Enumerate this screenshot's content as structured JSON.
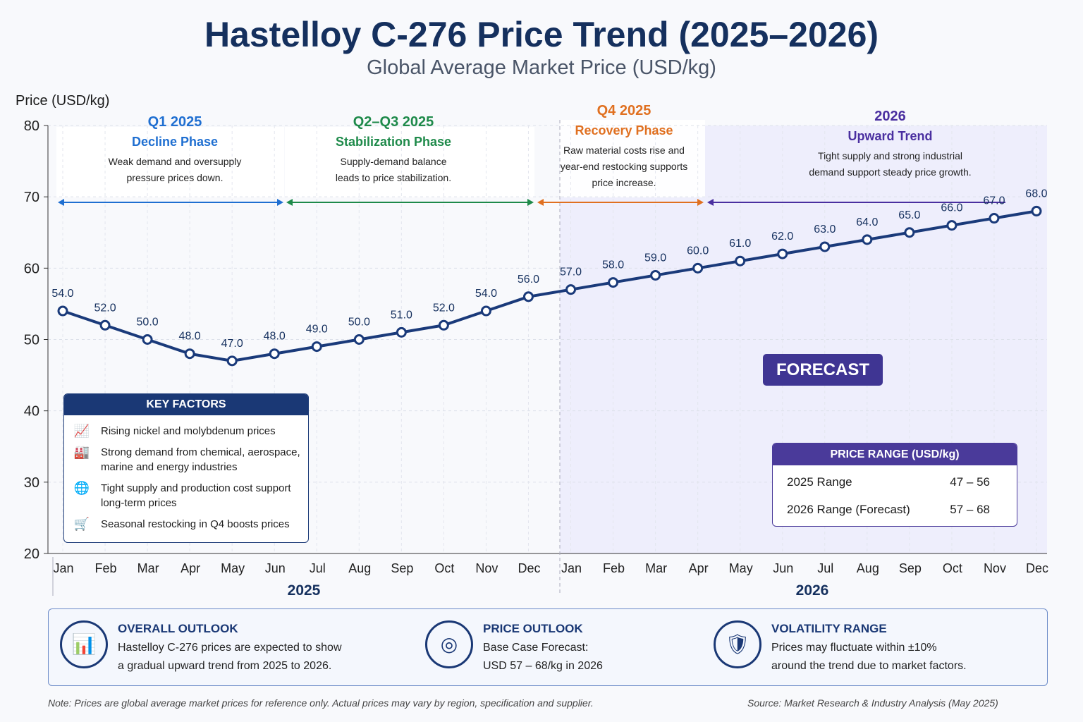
{
  "header": {
    "title": "Hastelloy C-276 Price Trend (2025–2026)",
    "subtitle": "Global Average Market Price (USD/kg)"
  },
  "chart_data": {
    "type": "line",
    "ylabel": "Price (USD/kg)",
    "ylim": [
      20,
      80
    ],
    "yticks": [
      20,
      30,
      40,
      50,
      60,
      70,
      80
    ],
    "grid": true,
    "x": [
      "Jan",
      "Feb",
      "Mar",
      "Apr",
      "May",
      "Jun",
      "Jul",
      "Aug",
      "Sep",
      "Oct",
      "Nov",
      "Dec",
      "Jan",
      "Feb",
      "Mar",
      "Apr",
      "May",
      "Jun",
      "Jul",
      "Aug",
      "Sep",
      "Oct",
      "Nov",
      "Dec"
    ],
    "year_labels": [
      "2025",
      "2026"
    ],
    "values": [
      54.0,
      52.0,
      50.0,
      48.0,
      47.0,
      48.0,
      49.0,
      50.0,
      51.0,
      52.0,
      54.0,
      56.0,
      57.0,
      58.0,
      59.0,
      60.0,
      61.0,
      62.0,
      63.0,
      64.0,
      65.0,
      66.0,
      67.0,
      68.0
    ],
    "forecast_label": "FORECAST",
    "forecast_start": "Jan 2026",
    "colors": {
      "line": "#1a3a7a",
      "forecast_bg": "#eeeefc"
    }
  },
  "phases": [
    {
      "period": "Q1 2025",
      "name": "Decline Phase",
      "desc": [
        "Weak demand and oversupply",
        "pressure prices down."
      ],
      "color": "#1f6fd1"
    },
    {
      "period": "Q2–Q3 2025",
      "name": "Stabilization Phase",
      "desc": [
        "Supply-demand balance",
        "leads to price stabilization."
      ],
      "color": "#1e8a4a"
    },
    {
      "period": "Q4 2025",
      "name": "Recovery Phase",
      "desc": [
        "Raw material costs rise and",
        "year-end restocking supports",
        "price increase."
      ],
      "color": "#e07020"
    },
    {
      "period": "2026",
      "name": "Upward Trend",
      "desc": [
        "Tight supply and strong industrial",
        "demand support steady price growth."
      ],
      "color": "#4a2fa0"
    }
  ],
  "key_factors": {
    "title": "KEY FACTORS",
    "items": [
      {
        "icon": "chart-up-icon",
        "text": "Rising nickel and molybdenum prices"
      },
      {
        "icon": "factory-icon",
        "text": "Strong demand from chemical, aerospace, marine and energy industries"
      },
      {
        "icon": "globe-icon",
        "text": "Tight supply and production cost support long-term prices"
      },
      {
        "icon": "cart-icon",
        "text": "Seasonal restocking in Q4 boosts prices"
      }
    ]
  },
  "price_range": {
    "title": "PRICE RANGE (USD/kg)",
    "rows": [
      {
        "label": "2025 Range",
        "value": "47 – 56"
      },
      {
        "label": "2026 Range (Forecast)",
        "value": "57 – 68"
      }
    ]
  },
  "outlook": [
    {
      "icon": "bar-chart-icon",
      "title": "OVERALL OUTLOOK",
      "lines": [
        "Hastelloy C-276 prices are expected to show",
        "a gradual upward trend from 2025 to 2026."
      ]
    },
    {
      "icon": "target-icon",
      "title": "PRICE OUTLOOK",
      "lines": [
        "Base Case Forecast:",
        "USD 57 – 68/kg in 2026"
      ]
    },
    {
      "icon": "shield-check-icon",
      "title": "VOLATILITY RANGE",
      "lines": [
        "Prices may fluctuate within ±10%",
        "around the trend due to market factors."
      ]
    }
  ],
  "footer": {
    "note": "Note: Prices are global average market prices for reference only. Actual prices may vary by region, specification and supplier.",
    "source": "Source: Market Research & Industry Analysis (May 2025)"
  }
}
